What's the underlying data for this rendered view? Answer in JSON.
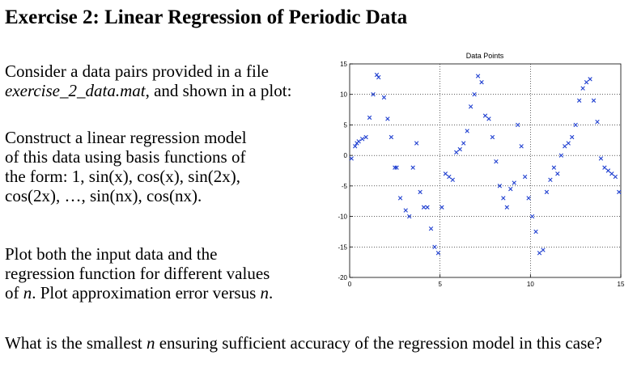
{
  "title": "Exercise 2: Linear Regression of Periodic Data",
  "intro": {
    "line1": "Consider a data pairs provided in a file",
    "file": "exercise_2_data.mat",
    "line2_after": ", and shown in a plot:"
  },
  "model": {
    "line1": "Construct a linear regression model",
    "line2": "of this data using basis functions of",
    "line3": "the form: 1, sin(x), cos(x), sin(2x),",
    "line4": "cos(2x), …, sin(nx), cos(nx)."
  },
  "plot_task": {
    "line1": "Plot both the input data and the",
    "line2": "regression function for different values",
    "line3_pre": "of ",
    "n": "n",
    "line3_post": ". Plot approximation error versus ",
    "n2": "n",
    "line3_end": "."
  },
  "question": {
    "pre": "What is the smallest ",
    "n": "n",
    "post": " ensuring sufficient accuracy of the regression model in this case?"
  },
  "chart_data": {
    "type": "scatter",
    "title": "Data Points",
    "xlabel": "",
    "ylabel": "",
    "xlim": [
      0,
      15
    ],
    "ylim": [
      -20,
      15
    ],
    "xticks": [
      0,
      5,
      10,
      15
    ],
    "yticks": [
      15,
      10,
      5,
      0,
      -5,
      -10,
      -15,
      -20
    ],
    "grid": true,
    "marker": "x",
    "color": "#1f3fd0",
    "series": [
      {
        "x": [
          0.1,
          0.3,
          0.4,
          0.5,
          0.7,
          0.9,
          1.1,
          1.3,
          1.5,
          1.6,
          1.9,
          2.1,
          2.3,
          2.5,
          2.6,
          2.8,
          3.1,
          3.3,
          3.5,
          3.7,
          3.9,
          4.1,
          4.3,
          4.5,
          4.7,
          4.9,
          5.1,
          5.3,
          5.5,
          5.7,
          5.9,
          6.1,
          6.3,
          6.5,
          6.7,
          6.9,
          7.1,
          7.3,
          7.5,
          7.7,
          7.9,
          8.1,
          8.3,
          8.5,
          8.7,
          8.9,
          9.1,
          9.3,
          9.5,
          9.7,
          9.9,
          10.1,
          10.3,
          10.5,
          10.7,
          10.9,
          11.1,
          11.3,
          11.5,
          11.7,
          11.9,
          12.1,
          12.3,
          12.5,
          12.7,
          12.9,
          13.1,
          13.3,
          13.5,
          13.7,
          13.9,
          14.1,
          14.3,
          14.5,
          14.7,
          14.9
        ],
        "y": [
          -0.5,
          1.5,
          2.0,
          2.3,
          2.7,
          3.0,
          6.2,
          10.0,
          13.2,
          12.8,
          9.5,
          6.0,
          3.0,
          -2.0,
          -2.0,
          -7.0,
          -9.0,
          -10.0,
          -2.0,
          2.0,
          -6.0,
          -8.5,
          -8.5,
          -12.0,
          -15.0,
          -16.0,
          -8.5,
          -3.0,
          -3.5,
          -4.0,
          0.5,
          1.0,
          2.0,
          4.0,
          8.0,
          10.0,
          13.0,
          12.0,
          6.5,
          6.0,
          3.0,
          -1.0,
          -5.0,
          -7.0,
          -8.5,
          -5.5,
          -4.5,
          5.0,
          1.5,
          -3.5,
          -7.0,
          -10.0,
          -12.5,
          -16.0,
          -15.5,
          -6.0,
          -4.0,
          -2.0,
          -3.0,
          0.0,
          1.5,
          2.0,
          3.0,
          5.0,
          9.0,
          11.0,
          12.0,
          12.5,
          9.0,
          5.5,
          -0.5,
          -2.0,
          -2.5,
          -3.0,
          -3.5,
          -6.0
        ]
      }
    ]
  }
}
